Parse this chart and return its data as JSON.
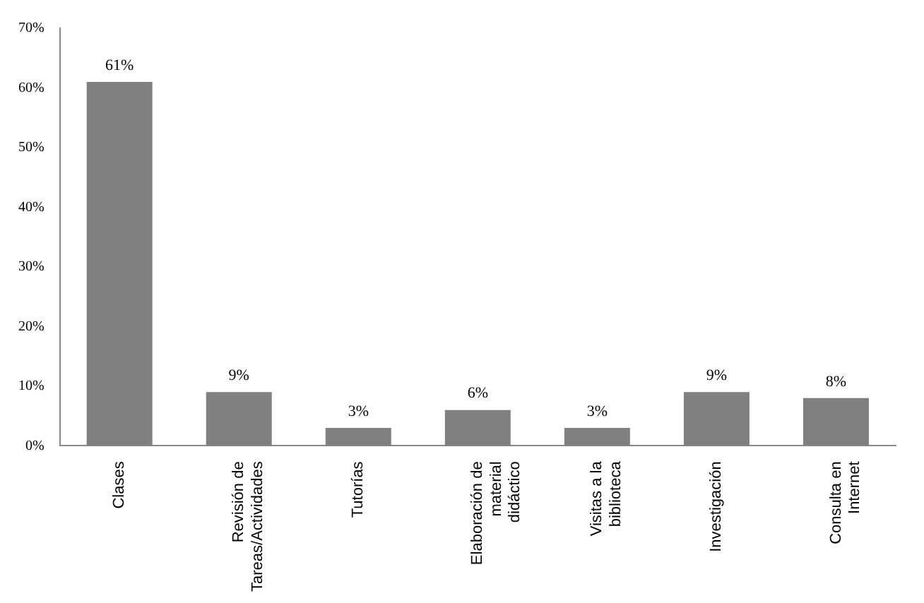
{
  "chart_data": {
    "type": "bar",
    "categories": [
      "Clases",
      "Revisión de Tareas/Actividades",
      "Tutorías",
      "Elaboración de material didáctico",
      "Visitas a la biblioteca",
      "Investigación",
      "Consulta en Internet"
    ],
    "values": [
      61,
      9,
      3,
      6,
      3,
      9,
      8
    ],
    "value_labels": [
      "61%",
      "9%",
      "3%",
      "6%",
      "3%",
      "9%",
      "8%"
    ],
    "color": "#808080",
    "ylim": [
      0,
      70
    ],
    "yticks": [
      {
        "value": 0,
        "label": "0%"
      },
      {
        "value": 10,
        "label": "10%"
      },
      {
        "value": 20,
        "label": "20%"
      },
      {
        "value": 30,
        "label": "30%"
      },
      {
        "value": 40,
        "label": "40%"
      },
      {
        "value": 50,
        "label": "50%"
      },
      {
        "value": 60,
        "label": "60%"
      },
      {
        "value": 70,
        "label": "70%"
      }
    ],
    "grid": false,
    "legend": false
  }
}
